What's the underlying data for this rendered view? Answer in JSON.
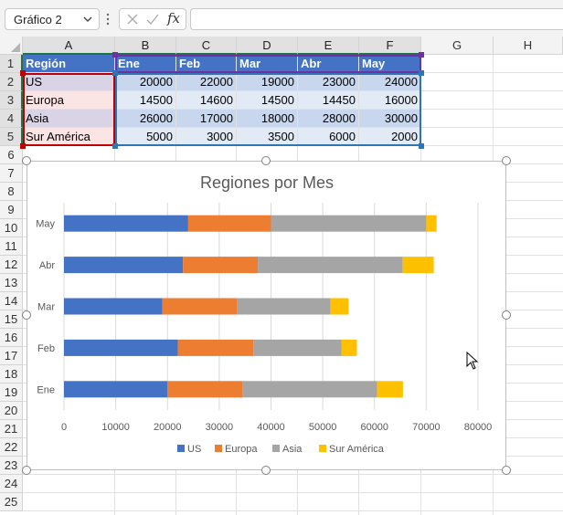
{
  "formula_bar": {
    "name_box": "Gráfico 2",
    "formula": "",
    "fx_label": "fx"
  },
  "columns": [
    "A",
    "B",
    "C",
    "D",
    "E",
    "F",
    "G",
    "H"
  ],
  "rows": [
    "1",
    "2",
    "3",
    "4",
    "5",
    "6",
    "7",
    "8",
    "9",
    "10",
    "11",
    "12",
    "13",
    "14",
    "15",
    "16",
    "17",
    "18",
    "19",
    "20",
    "21",
    "22",
    "23",
    "24",
    "25"
  ],
  "table": {
    "header": [
      "Región",
      "Ene",
      "Feb",
      "Mar",
      "Abr",
      "May"
    ],
    "rows": [
      {
        "region": "US",
        "values": [
          "20000",
          "22000",
          "19000",
          "23000",
          "24000"
        ]
      },
      {
        "region": "Europa",
        "values": [
          "14500",
          "14600",
          "14500",
          "14450",
          "16000"
        ]
      },
      {
        "region": "Asia",
        "values": [
          "26000",
          "17000",
          "18000",
          "28000",
          "30000"
        ]
      },
      {
        "region": "Sur América",
        "values": [
          "5000",
          "3000",
          "3500",
          "6000",
          "2000"
        ]
      }
    ]
  },
  "colors": {
    "header_fill": "#4472c4",
    "us": "#4472c4",
    "europa": "#ed7d31",
    "asia": "#a5a5a5",
    "sur_america": "#ffc000",
    "selection_red": "#c00000",
    "selection_blue": "#2e75b6",
    "selection_purple": "#7030a0"
  },
  "chart_data": {
    "type": "bar",
    "orientation": "horizontal",
    "stacked": true,
    "title": "Regiones por Mes",
    "categories": [
      "Ene",
      "Feb",
      "Mar",
      "Abr",
      "May"
    ],
    "series": [
      {
        "name": "US",
        "values": [
          20000,
          22000,
          19000,
          23000,
          24000
        ]
      },
      {
        "name": "Europa",
        "values": [
          14500,
          14600,
          14500,
          14450,
          16000
        ]
      },
      {
        "name": "Asia",
        "values": [
          26000,
          17000,
          18000,
          28000,
          30000
        ]
      },
      {
        "name": "Sur América",
        "values": [
          5000,
          3000,
          3500,
          6000,
          2000
        ]
      }
    ],
    "legend": [
      "US",
      "Europa",
      "Asia",
      "Sur América"
    ],
    "xlim": [
      0,
      80000
    ],
    "xticks": [
      "0",
      "10000",
      "20000",
      "30000",
      "40000",
      "50000",
      "60000",
      "70000",
      "80000"
    ],
    "grid": true,
    "legend_position": "bottom"
  }
}
